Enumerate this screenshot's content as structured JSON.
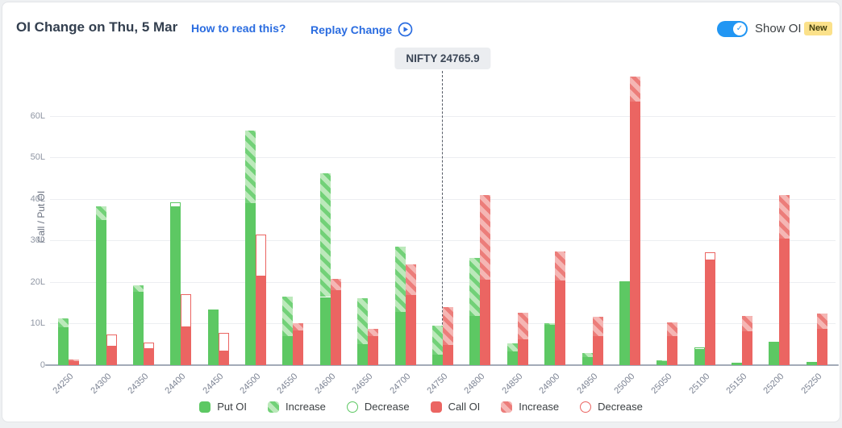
{
  "header": {
    "title": "OI Change on Thu, 5 Mar",
    "how_to_read": "How to read this?",
    "replay": "Replay Change",
    "show_oi": "Show OI",
    "new_badge": "New",
    "toggle_on": true,
    "check_glyph": "✓"
  },
  "colors": {
    "put_green": "#5dc863",
    "call_red": "#eb6562",
    "link_blue": "#2a6ce0",
    "toggle_blue": "#2196f3",
    "badge_yellow": "#fbe18a"
  },
  "chart_data": {
    "type": "bar",
    "title": "OI Change on Thu, 5 Mar",
    "ylabel": "Call / Put OI",
    "yticks": [
      "0",
      "10L",
      "20L",
      "30L",
      "40L",
      "50L",
      "60L"
    ],
    "ylim": [
      0,
      70
    ],
    "units": "lakh",
    "grid": true,
    "legend_position": "bottom",
    "nifty_line": {
      "label": "NIFTY 24765.9",
      "value": 24765.9
    },
    "categories": [
      "24250",
      "24300",
      "24350",
      "24400",
      "24450",
      "24500",
      "24550",
      "24600",
      "24650",
      "24700",
      "24750",
      "24800",
      "24850",
      "24900",
      "24950",
      "25000",
      "25050",
      "25100",
      "25150",
      "25200",
      "25250"
    ],
    "series": [
      {
        "name": "Put OI",
        "bars": [
          {
            "solid": 9.2,
            "total": 11.2,
            "change": "increase"
          },
          {
            "solid": 35.0,
            "total": 38.3,
            "change": "increase"
          },
          {
            "solid": 17.6,
            "total": 19.3,
            "change": "increase"
          },
          {
            "solid": 38.0,
            "total": 39.3,
            "change": "decrease"
          },
          {
            "solid": 13.3,
            "total": 13.3,
            "change": "none"
          },
          {
            "solid": 39.0,
            "total": 56.5,
            "change": "increase"
          },
          {
            "solid": 7.0,
            "total": 16.5,
            "change": "increase"
          },
          {
            "solid": 16.4,
            "total": 46.2,
            "change": "increase"
          },
          {
            "solid": 5.1,
            "total": 16.2,
            "change": "increase"
          },
          {
            "solid": 12.8,
            "total": 28.5,
            "change": "increase"
          },
          {
            "solid": 2.6,
            "total": 9.5,
            "change": "increase"
          },
          {
            "solid": 11.9,
            "total": 25.8,
            "change": "increase"
          },
          {
            "solid": 3.3,
            "total": 5.2,
            "change": "increase"
          },
          {
            "solid": 9.7,
            "total": 10.0,
            "change": "increase"
          },
          {
            "solid": 2.0,
            "total": 3.0,
            "change": "increase"
          },
          {
            "solid": 20.2,
            "total": 20.2,
            "change": "none"
          },
          {
            "solid": 0.9,
            "total": 1.2,
            "change": "increase"
          },
          {
            "solid": 3.7,
            "total": 4.3,
            "change": "decrease"
          },
          {
            "solid": 0.6,
            "total": 0.6,
            "change": "none"
          },
          {
            "solid": 5.6,
            "total": 5.6,
            "change": "none"
          },
          {
            "solid": 0.8,
            "total": 0.8,
            "change": "none"
          }
        ]
      },
      {
        "name": "Call OI",
        "bars": [
          {
            "solid": 0.9,
            "total": 1.3,
            "change": "increase"
          },
          {
            "solid": 4.4,
            "total": 7.3,
            "change": "decrease"
          },
          {
            "solid": 3.8,
            "total": 5.5,
            "change": "decrease"
          },
          {
            "solid": 9.1,
            "total": 17.0,
            "change": "decrease"
          },
          {
            "solid": 3.3,
            "total": 7.8,
            "change": "decrease"
          },
          {
            "solid": 21.3,
            "total": 31.5,
            "change": "decrease"
          },
          {
            "solid": 8.4,
            "total": 10.0,
            "change": "increase"
          },
          {
            "solid": 18.0,
            "total": 20.8,
            "change": "increase"
          },
          {
            "solid": 7.0,
            "total": 8.8,
            "change": "increase"
          },
          {
            "solid": 16.8,
            "total": 24.2,
            "change": "increase"
          },
          {
            "solid": 4.9,
            "total": 14.0,
            "change": "increase"
          },
          {
            "solid": 20.6,
            "total": 41.0,
            "change": "increase"
          },
          {
            "solid": 6.2,
            "total": 12.7,
            "change": "increase"
          },
          {
            "solid": 20.3,
            "total": 27.3,
            "change": "increase"
          },
          {
            "solid": 7.0,
            "total": 11.6,
            "change": "increase"
          },
          {
            "solid": 63.5,
            "total": 69.5,
            "change": "increase"
          },
          {
            "solid": 7.0,
            "total": 10.2,
            "change": "increase"
          },
          {
            "solid": 25.3,
            "total": 27.2,
            "change": "decrease"
          },
          {
            "solid": 8.1,
            "total": 11.8,
            "change": "increase"
          },
          {
            "solid": 30.5,
            "total": 41.0,
            "change": "increase"
          },
          {
            "solid": 8.8,
            "total": 12.4,
            "change": "increase"
          }
        ]
      }
    ],
    "legend_items": [
      {
        "label": "Put OI",
        "type": "put-solid"
      },
      {
        "label": "Increase",
        "type": "put-hatch"
      },
      {
        "label": "Decrease",
        "type": "put-outline"
      },
      {
        "label": "Call OI",
        "type": "call-solid"
      },
      {
        "label": "Increase",
        "type": "call-hatch"
      },
      {
        "label": "Decrease",
        "type": "call-outline"
      }
    ]
  }
}
